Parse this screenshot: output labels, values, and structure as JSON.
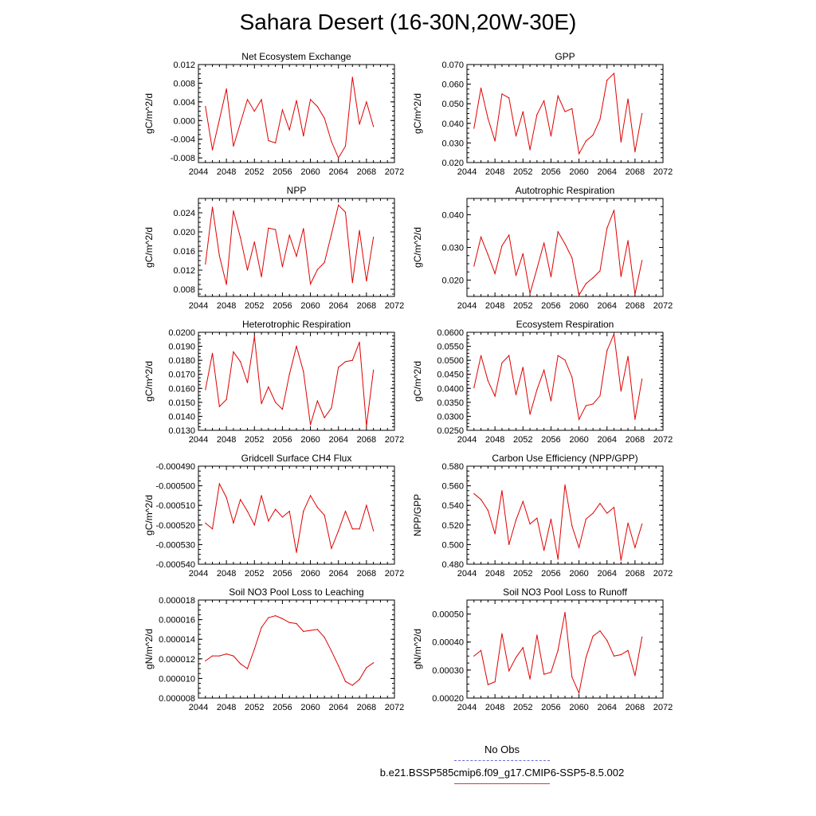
{
  "title": "Sahara Desert (16-30N,20W-30E)",
  "legend": {
    "obs_label": "No Obs",
    "model_label": "b.e21.BSSP585cmip6.f09_g17.CMIP6-SSP5-8.5.002",
    "obs_color": "#6b6bd6",
    "model_color": "#e00000"
  },
  "chart_data": [
    {
      "type": "line",
      "title": "Net Ecosystem Exchange",
      "ylabel": "gC/m^2/d",
      "xlim": [
        2044,
        2072
      ],
      "xticks": [
        "2044",
        "2048",
        "2052",
        "2056",
        "2060",
        "2064",
        "2068",
        "2072"
      ],
      "ylim": [
        -0.009,
        0.012
      ],
      "yticks": [
        "-0.008",
        "-0.004",
        "0.000",
        "0.004",
        "0.008",
        "0.012"
      ],
      "x": [
        2045,
        2046,
        2047,
        2048,
        2049,
        2050,
        2051,
        2052,
        2053,
        2054,
        2055,
        2056,
        2057,
        2058,
        2059,
        2060,
        2061,
        2062,
        2063,
        2064,
        2065,
        2066,
        2067,
        2068,
        2069
      ],
      "values": [
        0.003,
        -0.0063,
        0.0002,
        0.0068,
        -0.0055,
        -0.0005,
        0.0045,
        0.002,
        0.0045,
        -0.0043,
        -0.0048,
        0.0023,
        -0.002,
        0.0043,
        -0.0033,
        0.0045,
        0.003,
        0.0005,
        -0.0045,
        -0.008,
        -0.0055,
        0.0093,
        -0.0008,
        0.004,
        -0.0013
      ]
    },
    {
      "type": "line",
      "title": "GPP",
      "ylabel": "gC/m^2/d",
      "xlim": [
        2044,
        2072
      ],
      "xticks": [
        "2044",
        "2048",
        "2052",
        "2056",
        "2060",
        "2064",
        "2068",
        "2072"
      ],
      "ylim": [
        0.02,
        0.07
      ],
      "yticks": [
        "0.020",
        "0.030",
        "0.040",
        "0.050",
        "0.060",
        "0.070"
      ],
      "x": [
        2045,
        2046,
        2047,
        2048,
        2049,
        2050,
        2051,
        2052,
        2053,
        2054,
        2055,
        2056,
        2057,
        2058,
        2059,
        2060,
        2061,
        2062,
        2063,
        2064,
        2065,
        2066,
        2067,
        2068,
        2069
      ],
      "values": [
        0.0375,
        0.058,
        0.0425,
        0.031,
        0.055,
        0.053,
        0.0335,
        0.046,
        0.0265,
        0.0445,
        0.0515,
        0.0335,
        0.054,
        0.046,
        0.0475,
        0.0245,
        0.031,
        0.034,
        0.042,
        0.062,
        0.0655,
        0.0305,
        0.0525,
        0.0255,
        0.045
      ]
    },
    {
      "type": "line",
      "title": "NPP",
      "ylabel": "gC/m^2/d",
      "xlim": [
        2044,
        2072
      ],
      "xticks": [
        "2044",
        "2048",
        "2052",
        "2056",
        "2060",
        "2064",
        "2068",
        "2072"
      ],
      "ylim": [
        0.0065,
        0.027
      ],
      "yticks": [
        "0.008",
        "0.012",
        "0.016",
        "0.020",
        "0.024"
      ],
      "x": [
        2045,
        2046,
        2047,
        2048,
        2049,
        2050,
        2051,
        2052,
        2053,
        2054,
        2055,
        2056,
        2057,
        2058,
        2059,
        2060,
        2061,
        2062,
        2063,
        2064,
        2065,
        2066,
        2067,
        2068,
        2069
      ],
      "values": [
        0.0133,
        0.0252,
        0.015,
        0.009,
        0.0244,
        0.0188,
        0.012,
        0.0179,
        0.0106,
        0.0208,
        0.0205,
        0.0127,
        0.0193,
        0.0149,
        0.0207,
        0.0091,
        0.0121,
        0.0136,
        0.0195,
        0.0256,
        0.0241,
        0.0094,
        0.0203,
        0.0097,
        0.0189
      ]
    },
    {
      "type": "line",
      "title": "Autotrophic Respiration",
      "ylabel": "gC/m^2/d",
      "xlim": [
        2044,
        2072
      ],
      "xticks": [
        "2044",
        "2048",
        "2052",
        "2056",
        "2060",
        "2064",
        "2068",
        "2072"
      ],
      "ylim": [
        0.015,
        0.045
      ],
      "yticks": [
        "0.020",
        "0.030",
        "0.040"
      ],
      "x": [
        2045,
        2046,
        2047,
        2048,
        2049,
        2050,
        2051,
        2052,
        2053,
        2054,
        2055,
        2056,
        2057,
        2058,
        2059,
        2060,
        2061,
        2062,
        2063,
        2064,
        2065,
        2066,
        2067,
        2068,
        2069
      ],
      "values": [
        0.0243,
        0.0332,
        0.0278,
        0.022,
        0.0305,
        0.0338,
        0.0214,
        0.0281,
        0.0159,
        0.0235,
        0.0314,
        0.021,
        0.0348,
        0.0311,
        0.0268,
        0.0154,
        0.0189,
        0.0207,
        0.0228,
        0.0359,
        0.0414,
        0.0211,
        0.0321,
        0.0157,
        0.026
      ]
    },
    {
      "type": "line",
      "title": "Heterotrophic Respiration",
      "ylabel": "gC/m^2/d",
      "xlim": [
        2044,
        2072
      ],
      "xticks": [
        "2044",
        "2048",
        "2052",
        "2056",
        "2060",
        "2064",
        "2068",
        "2072"
      ],
      "ylim": [
        0.013,
        0.02
      ],
      "yticks": [
        "0.0130",
        "0.0140",
        "0.0150",
        "0.0160",
        "0.0170",
        "0.0180",
        "0.0190",
        "0.0200"
      ],
      "x": [
        2045,
        2046,
        2047,
        2048,
        2049,
        2050,
        2051,
        2052,
        2053,
        2054,
        2055,
        2056,
        2057,
        2058,
        2059,
        2060,
        2061,
        2062,
        2063,
        2064,
        2065,
        2066,
        2067,
        2068,
        2069
      ],
      "values": [
        0.0159,
        0.0185,
        0.0147,
        0.0152,
        0.0186,
        0.0179,
        0.0164,
        0.0197,
        0.0149,
        0.0161,
        0.015,
        0.0145,
        0.017,
        0.019,
        0.0172,
        0.0134,
        0.0151,
        0.0139,
        0.0146,
        0.0175,
        0.0179,
        0.018,
        0.0193,
        0.0133,
        0.0173
      ]
    },
    {
      "type": "line",
      "title": "Ecosystem Respiration",
      "ylabel": "gC/m^2/d",
      "xlim": [
        2044,
        2072
      ],
      "xticks": [
        "2044",
        "2048",
        "2052",
        "2056",
        "2060",
        "2064",
        "2068",
        "2072"
      ],
      "ylim": [
        0.025,
        0.06
      ],
      "yticks": [
        "0.0250",
        "0.0300",
        "0.0350",
        "0.0400",
        "0.0450",
        "0.0500",
        "0.0550",
        "0.0600"
      ],
      "x": [
        2045,
        2046,
        2047,
        2048,
        2049,
        2050,
        2051,
        2052,
        2053,
        2054,
        2055,
        2056,
        2057,
        2058,
        2059,
        2060,
        2061,
        2062,
        2063,
        2064,
        2065,
        2066,
        2067,
        2068,
        2069
      ],
      "values": [
        0.0402,
        0.0517,
        0.0427,
        0.0372,
        0.0491,
        0.0517,
        0.0377,
        0.0475,
        0.0307,
        0.0395,
        0.0465,
        0.0355,
        0.0517,
        0.0501,
        0.044,
        0.0289,
        0.0338,
        0.0344,
        0.0373,
        0.0534,
        0.0594,
        0.039,
        0.0514,
        0.0289,
        0.0433
      ]
    },
    {
      "type": "line",
      "title": "Gridcell Surface CH4 Flux",
      "ylabel": "gC/m^2/d",
      "xlim": [
        2044,
        2072
      ],
      "xticks": [
        "2044",
        "2048",
        "2052",
        "2056",
        "2060",
        "2064",
        "2068",
        "2072"
      ],
      "ylim": [
        -0.00054,
        -0.00049
      ],
      "yticks": [
        "-0.000540",
        "-0.000530",
        "-0.000520",
        "-0.000510",
        "-0.000500",
        "-0.000490"
      ],
      "x": [
        2045,
        2046,
        2047,
        2048,
        2049,
        2050,
        2051,
        2052,
        2053,
        2054,
        2055,
        2056,
        2057,
        2058,
        2059,
        2060,
        2061,
        2062,
        2063,
        2064,
        2065,
        2066,
        2067,
        2068,
        2069
      ],
      "values": [
        -0.000519,
        -0.000522,
        -0.000499,
        -0.000506,
        -0.000519,
        -0.000507,
        -0.000513,
        -0.00052,
        -0.000505,
        -0.000518,
        -0.000512,
        -0.000516,
        -0.000513,
        -0.000534,
        -0.000513,
        -0.000505,
        -0.000511,
        -0.000515,
        -0.000532,
        -0.000523,
        -0.000513,
        -0.000522,
        -0.000522,
        -0.00051,
        -0.000523
      ]
    },
    {
      "type": "line",
      "title": "Carbon Use Efficiency (NPP/GPP)",
      "ylabel": "NPP/GPP",
      "xlim": [
        2044,
        2072
      ],
      "xticks": [
        "2044",
        "2048",
        "2052",
        "2056",
        "2060",
        "2064",
        "2068",
        "2072"
      ],
      "ylim": [
        0.48,
        0.58
      ],
      "yticks": [
        "0.480",
        "0.500",
        "0.520",
        "0.540",
        "0.560",
        "0.580"
      ],
      "x": [
        2045,
        2046,
        2047,
        2048,
        2049,
        2050,
        2051,
        2052,
        2053,
        2054,
        2055,
        2056,
        2057,
        2058,
        2059,
        2060,
        2061,
        2062,
        2063,
        2064,
        2065,
        2066,
        2067,
        2068,
        2069
      ],
      "values": [
        0.552,
        0.546,
        0.535,
        0.511,
        0.555,
        0.5,
        0.525,
        0.544,
        0.521,
        0.527,
        0.494,
        0.526,
        0.485,
        0.561,
        0.519,
        0.497,
        0.526,
        0.532,
        0.542,
        0.532,
        0.538,
        0.484,
        0.522,
        0.497,
        0.521
      ]
    },
    {
      "type": "line",
      "title": "Soil NO3 Pool Loss to Leaching",
      "ylabel": "gN/m^2/d",
      "xlim": [
        2044,
        2072
      ],
      "xticks": [
        "2044",
        "2048",
        "2052",
        "2056",
        "2060",
        "2064",
        "2068",
        "2072"
      ],
      "ylim": [
        8e-06,
        1.8e-05
      ],
      "yticks": [
        "0.000008",
        "0.000010",
        "0.000012",
        "0.000014",
        "0.000016",
        "0.000018"
      ],
      "x": [
        2045,
        2046,
        2047,
        2048,
        2049,
        2050,
        2051,
        2052,
        2053,
        2054,
        2055,
        2056,
        2057,
        2058,
        2059,
        2060,
        2061,
        2062,
        2063,
        2064,
        2065,
        2066,
        2067,
        2068,
        2069
      ],
      "values": [
        1.18e-05,
        1.23e-05,
        1.23e-05,
        1.25e-05,
        1.23e-05,
        1.15e-05,
        1.1e-05,
        1.3e-05,
        1.52e-05,
        1.62e-05,
        1.64e-05,
        1.61e-05,
        1.57e-05,
        1.56e-05,
        1.48e-05,
        1.49e-05,
        1.5e-05,
        1.42e-05,
        1.28e-05,
        1.13e-05,
        9.7e-06,
        9.3e-06,
        9.9e-06,
        1.11e-05,
        1.16e-05
      ]
    },
    {
      "type": "line",
      "title": "Soil NO3 Pool Loss to Runoff",
      "ylabel": "gN/m^2/d",
      "xlim": [
        2044,
        2072
      ],
      "xticks": [
        "2044",
        "2048",
        "2052",
        "2056",
        "2060",
        "2064",
        "2068",
        "2072"
      ],
      "ylim": [
        0.0002,
        0.00055
      ],
      "yticks": [
        "0.00020",
        "0.00030",
        "0.00040",
        "0.00050"
      ],
      "x": [
        2045,
        2046,
        2047,
        2048,
        2049,
        2050,
        2051,
        2052,
        2053,
        2054,
        2055,
        2056,
        2057,
        2058,
        2059,
        2060,
        2061,
        2062,
        2063,
        2064,
        2065,
        2066,
        2067,
        2068,
        2069
      ],
      "values": [
        0.00035,
        0.00037,
        0.000248,
        0.000258,
        0.00043,
        0.000297,
        0.000345,
        0.00038,
        0.000268,
        0.000425,
        0.000285,
        0.000292,
        0.00037,
        0.000506,
        0.000275,
        0.000218,
        0.000345,
        0.000421,
        0.00044,
        0.000406,
        0.00035,
        0.000355,
        0.00037,
        0.00028,
        0.000418
      ]
    }
  ]
}
